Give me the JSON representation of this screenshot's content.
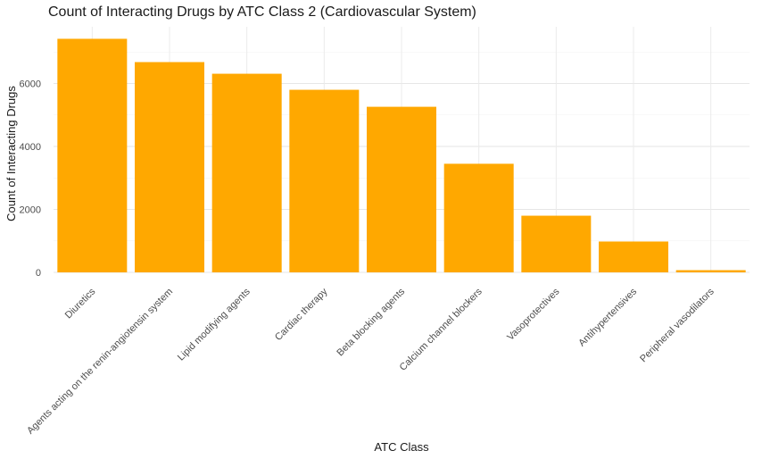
{
  "chart_data": {
    "type": "bar",
    "title": "Count of Interacting Drugs by ATC Class 2 (Cardiovascular System)",
    "xlabel": "ATC Class",
    "ylabel": "Count of Interacting Drugs",
    "categories": [
      "Diuretics",
      "Agents acting on the renin-angiotensin system",
      "Lipid modifying agents",
      "Cardiac therapy",
      "Beta blocking agents",
      "Calcium channel blockers",
      "Vasoprotectives",
      "Antihypertensives",
      "Peripheral vasodilators"
    ],
    "values": [
      7420,
      6680,
      6310,
      5800,
      5260,
      3450,
      1800,
      980,
      70
    ],
    "yticks": [
      0,
      2000,
      4000,
      6000
    ],
    "ylim": [
      0,
      7800
    ],
    "grid": true,
    "bar_color": "#FFA800"
  }
}
